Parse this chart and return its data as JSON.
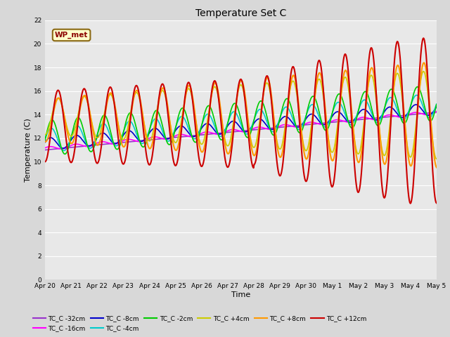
{
  "title": "Temperature Set C",
  "xlabel": "Time",
  "ylabel": "Temperature (C)",
  "ylim": [
    0,
    22
  ],
  "yticks": [
    0,
    2,
    4,
    6,
    8,
    10,
    12,
    14,
    16,
    18,
    20,
    22
  ],
  "bg_color": "#d8d8d8",
  "plot_bg_color": "#e8e8e8",
  "legend_label": "WP_met",
  "series_colors": {
    "TC_C -32cm": "#9933cc",
    "TC_C -16cm": "#ff00ff",
    "TC_C -8cm": "#0000cc",
    "TC_C -4cm": "#00cccc",
    "TC_C -2cm": "#00cc00",
    "TC_C +4cm": "#cccc00",
    "TC_C +8cm": "#ff9900",
    "TC_C +12cm": "#cc0000"
  },
  "tick_labels": [
    "Apr 20",
    "Apr 21",
    "Apr 22",
    "Apr 23",
    "Apr 24",
    "Apr 25",
    "Apr 26",
    "Apr 27",
    "Apr 28",
    "Apr 29",
    "Apr 30",
    "May 1",
    "May 2",
    "May 3",
    "May 4",
    "May 5"
  ],
  "n_days": 15
}
